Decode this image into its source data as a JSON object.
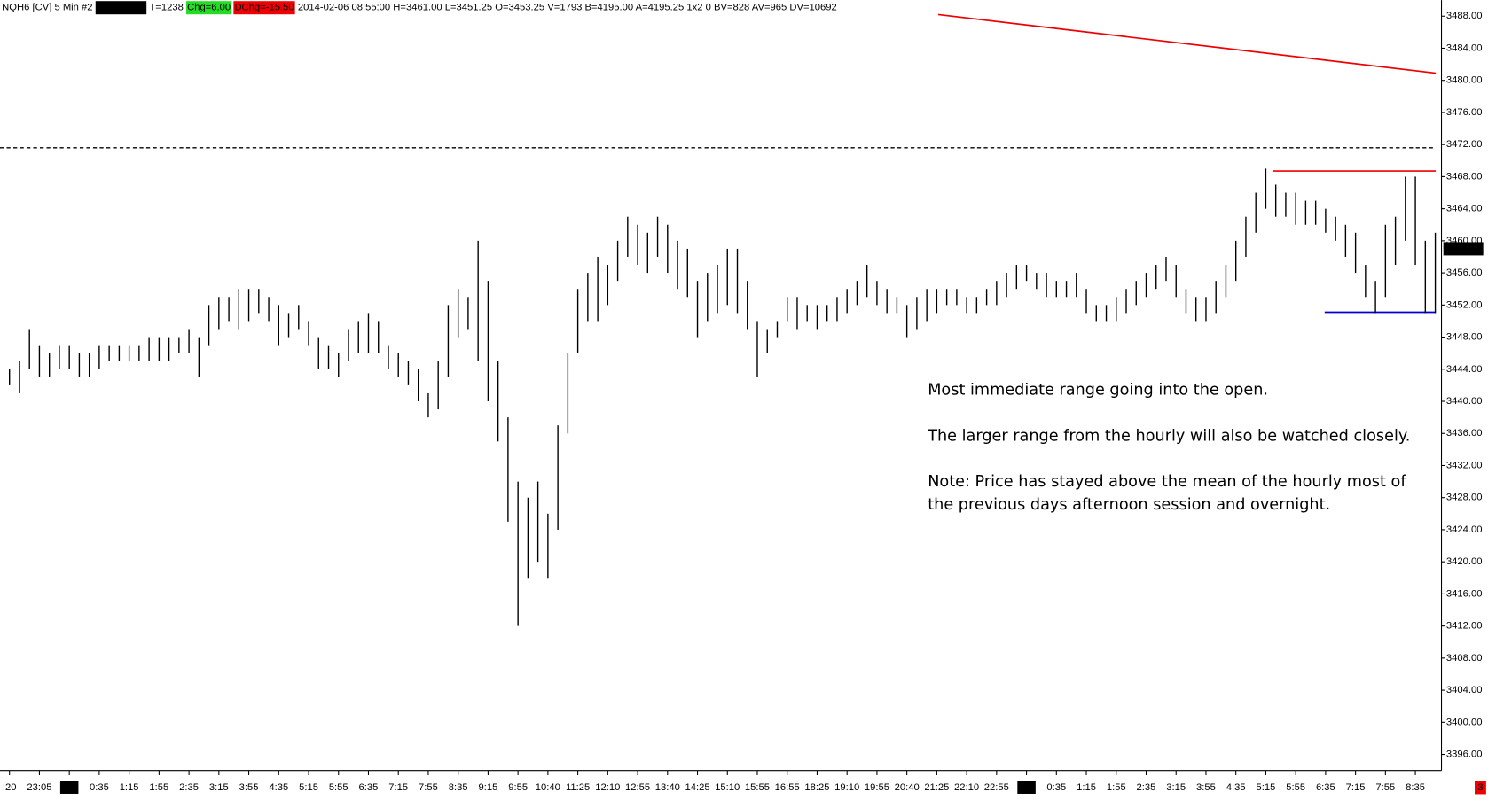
{
  "chart_data": {
    "type": "ohlc",
    "header": [
      "NQH6 [CV]  5 Min  #2",
      "C=3459.00",
      "T=1238",
      "Chg=6.00",
      "DChg=-15.50",
      "2014-02-06 08:55:00 H=3461.00 L=3451.25 O=3453.25 V=1793 B=4195.00 A=4195.25 1x2 0 BV=828 AV=965 DV=10692"
    ],
    "header_colors": [
      "#ffffff",
      "#000000",
      "#ffffff",
      "#22dd22",
      "#ee0000",
      "#ffffff"
    ],
    "categories": [
      ":20",
      null,
      null,
      "23:05",
      null,
      null,
      "2-5",
      null,
      null,
      "0:35",
      null,
      null,
      "1:15",
      null,
      null,
      "1:55",
      null,
      null,
      "2:35",
      null,
      null,
      "3:15",
      null,
      null,
      "3:55",
      null,
      null,
      "4:35",
      null,
      null,
      "5:15",
      null,
      null,
      "5:55",
      null,
      null,
      "6:35",
      null,
      null,
      "7:15",
      null,
      null,
      "7:55",
      null,
      null,
      "8:35",
      null,
      null,
      "9:15",
      null,
      null,
      "9:55",
      null,
      null,
      "10:40",
      null,
      null,
      "11:25",
      null,
      null,
      "12:10",
      null,
      null,
      "12:55",
      null,
      null,
      "13:40",
      null,
      null,
      "14:25",
      null,
      null,
      "15:10",
      null,
      null,
      "15:55",
      null,
      null,
      "16:55",
      null,
      null,
      "18:25",
      null,
      null,
      "19:10",
      null,
      null,
      "19:55",
      null,
      null,
      "20:40",
      null,
      null,
      "21:25",
      null,
      null,
      "22:10",
      null,
      null,
      "22:55",
      null,
      null,
      "2-6",
      null,
      null,
      "0:35",
      null,
      null,
      "1:15",
      null,
      null,
      "1:55",
      null,
      null,
      "2:35",
      null,
      null,
      "3:15",
      null,
      null,
      "3:55",
      null,
      null,
      "4:35",
      null,
      null,
      "5:15",
      null,
      null,
      "5:55",
      null,
      null,
      "6:35",
      null,
      null,
      "7:15",
      null,
      null,
      "7:55",
      null,
      null,
      "8:35",
      null,
      null
    ],
    "high": [
      3444,
      3445,
      3449,
      3447,
      3446,
      3447,
      3447,
      3446,
      3446,
      3447,
      3447,
      3447,
      3447,
      3447,
      3448,
      3448,
      3448,
      3448,
      3449,
      3448,
      3452,
      3453,
      3453,
      3454,
      3454,
      3454,
      3453,
      3452,
      3451,
      3452,
      3450,
      3448,
      3447,
      3446,
      3449,
      3450,
      3451,
      3450,
      3447,
      3446,
      3445,
      3444,
      3441,
      3445,
      3452,
      3454,
      3453,
      3460,
      3455,
      3445,
      3438,
      3430,
      3428,
      3430,
      3426,
      3437,
      3446,
      3454,
      3456,
      3458,
      3457,
      3460,
      3463,
      3462,
      3461,
      3463,
      3462,
      3460,
      3459,
      3455,
      3456,
      3457,
      3459,
      3459,
      3455,
      3450,
      3449,
      3450,
      3453,
      3453,
      3452,
      3452,
      3452,
      3453,
      3454,
      3455,
      3457,
      3455,
      3454,
      3453,
      3452,
      3453,
      3454,
      3454,
      3454,
      3454,
      3453,
      3453,
      3454,
      3455,
      3456,
      3457,
      3457,
      3456,
      3456,
      3455,
      3455,
      3456,
      3454,
      3452,
      3452,
      3453,
      3454,
      3455,
      3456,
      3457,
      3458,
      3457,
      3454,
      3453,
      3453,
      3455,
      3457,
      3460,
      3463,
      3466,
      3469,
      3467,
      3466,
      3466,
      3465,
      3465,
      3464,
      3463,
      3462,
      3461,
      3457,
      3455,
      3462,
      3463,
      3468,
      3468,
      3460,
      3461
    ],
    "low": [
      3442,
      3441,
      3444,
      3443,
      3443,
      3444,
      3444,
      3443,
      3443,
      3444,
      3445,
      3445,
      3445,
      3445,
      3445,
      3445,
      3445,
      3446,
      3446,
      3443,
      3447,
      3449,
      3450,
      3449,
      3450,
      3451,
      3450,
      3447,
      3448,
      3449,
      3447,
      3444,
      3444,
      3443,
      3445,
      3446,
      3446,
      3446,
      3444,
      3443,
      3442,
      3440,
      3438,
      3439,
      3443,
      3448,
      3449,
      3445,
      3440,
      3435,
      3425,
      3412,
      3418,
      3420,
      3418,
      3424,
      3436,
      3446,
      3450,
      3450,
      3452,
      3455,
      3458,
      3457,
      3456,
      3458,
      3456,
      3454,
      3453,
      3448,
      3450,
      3451,
      3452,
      3451,
      3449,
      3443,
      3446,
      3448,
      3450,
      3449,
      3450,
      3449,
      3450,
      3450,
      3451,
      3452,
      3453,
      3452,
      3451,
      3451,
      3448,
      3449,
      3450,
      3451,
      3452,
      3452,
      3451,
      3451,
      3452,
      3452,
      3453,
      3454,
      3455,
      3454,
      3453,
      3453,
      3453,
      3453,
      3451,
      3450,
      3450,
      3450,
      3451,
      3452,
      3453,
      3454,
      3455,
      3453,
      3451,
      3450,
      3450,
      3451,
      3453,
      3455,
      3458,
      3461,
      3464,
      3463,
      3463,
      3462,
      3462,
      3462,
      3461,
      3460,
      3458,
      3456,
      3453,
      3451,
      3453,
      3457,
      3460,
      3457,
      3451,
      3451
    ],
    "color": "#000000",
    "ylim": [
      3394,
      3490
    ],
    "yticks": [
      {
        "value": 3396,
        "label": "3396.00"
      },
      {
        "value": 3400,
        "label": "3400.00"
      },
      {
        "value": 3404,
        "label": "3404.00"
      },
      {
        "value": 3408,
        "label": "3408.00"
      },
      {
        "value": 3412,
        "label": "3412.00"
      },
      {
        "value": 3416,
        "label": "3416.00"
      },
      {
        "value": 3420,
        "label": "3420.00"
      },
      {
        "value": 3424,
        "label": "3424.00"
      },
      {
        "value": 3428,
        "label": "3428.00"
      },
      {
        "value": 3432,
        "label": "3432.00"
      },
      {
        "value": 3436,
        "label": "3436.00"
      },
      {
        "value": 3440,
        "label": "3440.00"
      },
      {
        "value": 3444,
        "label": "3444.00"
      },
      {
        "value": 3448,
        "label": "3448.00"
      },
      {
        "value": 3452,
        "label": "3452.00"
      },
      {
        "value": 3456,
        "label": "3456.00"
      },
      {
        "value": 3460,
        "label": "3460.00"
      },
      {
        "value": 3464,
        "label": "3464.00"
      },
      {
        "value": 3468,
        "label": "3468.00"
      },
      {
        "value": 3472,
        "label": "3472.00"
      },
      {
        "value": 3476,
        "label": "3476.00"
      },
      {
        "value": 3480,
        "label": "3480.00"
      },
      {
        "value": 3484,
        "label": "3484.00"
      },
      {
        "value": 3488,
        "label": "3488.00"
      }
    ],
    "last_price": {
      "value": 3459,
      "label": "3459.00"
    },
    "lines": [
      {
        "color": "#ee0000",
        "values": [
          3488.2,
          3480.9
        ],
        "dashed": false
      },
      {
        "color": "#000000",
        "values": [
          3471.6,
          3471.6
        ],
        "dashed": true
      },
      {
        "color": "#ee0000",
        "values": [
          3468.7,
          3468.7
        ],
        "dashed": false
      },
      {
        "color": "#0000cc",
        "values": [
          3451.1,
          3451.1
        ],
        "dashed": false
      }
    ],
    "annotations": [
      "Most immediate range going into the open.",
      "The larger range from the hourly will also be watched closely.",
      "Note:  Price has stayed above the mean of the hourly most of",
      "the previous days afternoon session and overnight."
    ],
    "corner_badge": "3"
  }
}
